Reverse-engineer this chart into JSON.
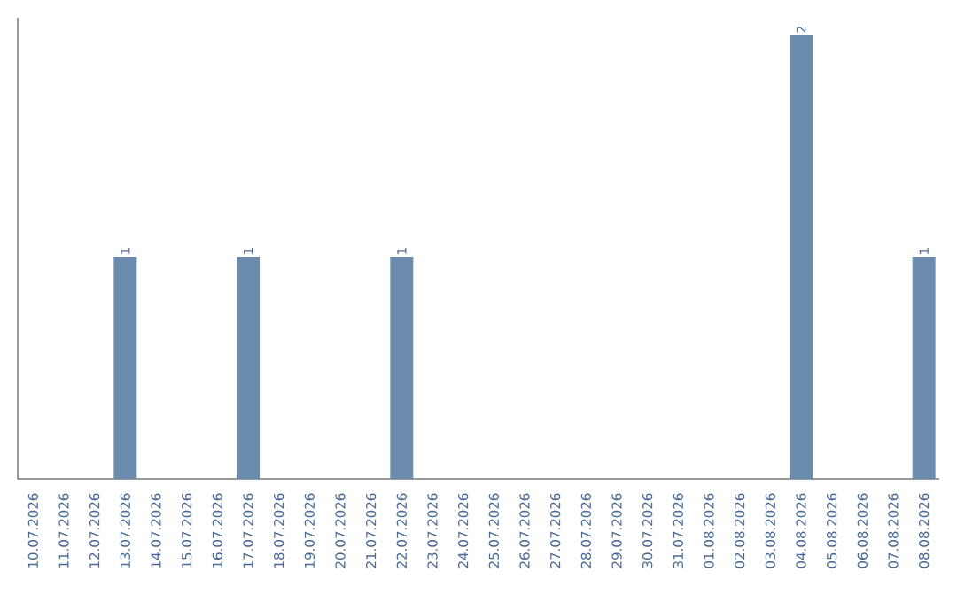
{
  "chart_data": {
    "type": "bar",
    "categories": [
      "10.07.2026",
      "11.07.2026",
      "12.07.2026",
      "13.07.2026",
      "14.07.2026",
      "15.07.2026",
      "16.07.2026",
      "17.07.2026",
      "18.07.2026",
      "19.07.2026",
      "20.07.2026",
      "21.07.2026",
      "22.07.2026",
      "23.07.2026",
      "24.07.2026",
      "25.07.2026",
      "26.07.2026",
      "27.07.2026",
      "28.07.2026",
      "29.07.2026",
      "30.07.2026",
      "31.07.2026",
      "01.08.2026",
      "02.08.2026",
      "03.08.2026",
      "04.08.2026",
      "05.08.2026",
      "06.08.2026",
      "07.08.2026",
      "08.08.2026"
    ],
    "values": [
      0,
      0,
      0,
      1,
      0,
      0,
      0,
      1,
      0,
      0,
      0,
      0,
      1,
      0,
      0,
      0,
      0,
      0,
      0,
      0,
      0,
      0,
      0,
      0,
      0,
      2,
      0,
      0,
      0,
      1
    ],
    "value_labels": [
      null,
      null,
      null,
      "1",
      null,
      null,
      null,
      "1",
      null,
      null,
      null,
      null,
      "1",
      null,
      null,
      null,
      null,
      null,
      null,
      null,
      null,
      null,
      null,
      null,
      null,
      "2",
      null,
      null,
      null,
      "1"
    ],
    "color": "#6b8cac",
    "tick_labels": "x"
  }
}
